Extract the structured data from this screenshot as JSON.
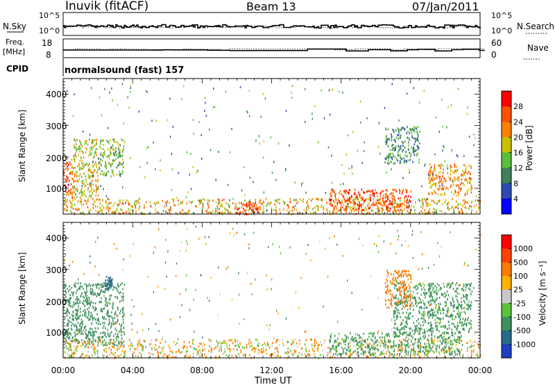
{
  "header": {
    "station": "Inuvik (fitACF)",
    "beam": "Beam 13",
    "date": "07/Jan/2011"
  },
  "nsky_panel": {
    "left_label": "N.Sky",
    "left_ticks": [
      "10^5",
      "10^0"
    ],
    "right_ticks": [
      "10^5",
      "10^0"
    ],
    "right_label": "N.Search"
  },
  "freq_panel": {
    "label_line1": "Freq.",
    "label_line2": "[MHz]",
    "left_ticks": [
      "18",
      "8"
    ],
    "right_ticks": [
      "60",
      "0"
    ],
    "right_label": "Nave"
  },
  "cpid_panel": {
    "label": "CPID",
    "text": "normalsound (fast) 157"
  },
  "power_panel": {
    "ylabel": "Slant Range [km]",
    "yticks": [
      "4000",
      "3000",
      "2000",
      "1000"
    ],
    "colorbar_label": "Power [dB]",
    "colorbar_ticks": [
      "28",
      "24",
      "20",
      "16",
      "12",
      "8",
      "4"
    ]
  },
  "velocity_panel": {
    "ylabel": "Slant Range [km]",
    "yticks": [
      "4000",
      "3000",
      "2000",
      "1000"
    ],
    "colorbar_label": "Velocity [m s⁻¹]",
    "colorbar_ticks": [
      "1000",
      "500",
      "100",
      "25",
      "-25",
      "-100",
      "-500",
      "-1000"
    ]
  },
  "xaxis": {
    "label": "Time UT",
    "ticks": [
      "00:00",
      "04:00",
      "08:00",
      "12:00",
      "16:00",
      "20:00",
      "00:00"
    ]
  },
  "colors": {
    "power_scale": [
      "#0000ff",
      "#2c4bb0",
      "#3f7f5a",
      "#5bbf3a",
      "#c8c000",
      "#ff8000",
      "#ff5000",
      "#ff0000"
    ],
    "velocity_scale": [
      "#1d3fbf",
      "#2a6a8a",
      "#3f8f5f",
      "#59c23a",
      "#c8c8c8",
      "#ffb000",
      "#ff7a00",
      "#ff4000",
      "#ff0000"
    ]
  },
  "chart_data": {
    "type": "heatmap",
    "x": [
      "00:00",
      "04:00",
      "08:00",
      "12:00",
      "16:00",
      "20:00",
      "00:00"
    ],
    "ylim": [
      180,
      4500
    ],
    "series": [
      {
        "name": "Power",
        "regions": [
          {
            "t_start": 0.0,
            "t_end": 0.6,
            "r_start": 400,
            "r_end": 2000,
            "level": 24
          },
          {
            "t_start": 0.6,
            "t_end": 2.0,
            "r_start": 600,
            "r_end": 2600,
            "level": 18
          },
          {
            "t_start": 2.0,
            "t_end": 3.5,
            "r_start": 1400,
            "r_end": 2600,
            "level": 14
          },
          {
            "t_start": 0.0,
            "t_end": 24.0,
            "r_start": 200,
            "r_end": 700,
            "level": 20
          },
          {
            "t_start": 9.8,
            "t_end": 11.2,
            "r_start": 200,
            "r_end": 600,
            "level": 28
          },
          {
            "t_start": 15.3,
            "t_end": 20.0,
            "r_start": 300,
            "r_end": 1000,
            "level": 26
          },
          {
            "t_start": 18.5,
            "t_end": 20.5,
            "r_start": 1800,
            "r_end": 3000,
            "level": 10
          },
          {
            "t_start": 21.0,
            "t_end": 23.5,
            "r_start": 800,
            "r_end": 1800,
            "level": 22
          }
        ]
      },
      {
        "name": "Velocity",
        "regions": [
          {
            "t_start": 0.0,
            "t_end": 3.5,
            "r_start": 600,
            "r_end": 2600,
            "level": -300
          },
          {
            "t_start": 2.4,
            "t_end": 2.8,
            "r_start": 2400,
            "r_end": 2800,
            "level": -800
          },
          {
            "t_start": 0.0,
            "t_end": 24.0,
            "r_start": 200,
            "r_end": 800,
            "level": 50
          },
          {
            "t_start": 15.3,
            "t_end": 23.0,
            "r_start": 300,
            "r_end": 1000,
            "level": -150
          },
          {
            "t_start": 19.0,
            "t_end": 23.5,
            "r_start": 1000,
            "r_end": 2600,
            "level": -200
          },
          {
            "t_start": 18.5,
            "t_end": 20.0,
            "r_start": 1800,
            "r_end": 3000,
            "level": 300
          }
        ]
      }
    ]
  }
}
